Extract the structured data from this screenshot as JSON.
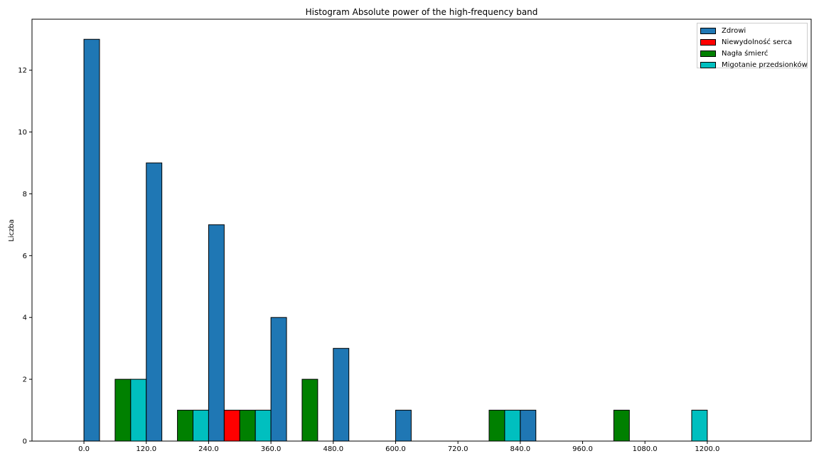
{
  "chart_data": {
    "type": "bar",
    "title": "Histogram Absolute power of the high-frequency band",
    "xlabel": "",
    "ylabel": "Liczba",
    "xlim": [
      -100,
      1400
    ],
    "ylim": [
      0,
      13.65
    ],
    "x_ticks": [
      0,
      120,
      240,
      360,
      480,
      600,
      720,
      840,
      960,
      1080,
      1200
    ],
    "x_tick_labels": [
      "0.0",
      "120.0",
      "240.0",
      "360.0",
      "480.0",
      "600.0",
      "720.0",
      "840.0",
      "960.0",
      "1080.0",
      "1200.0"
    ],
    "y_ticks": [
      0,
      2,
      4,
      6,
      8,
      10,
      12
    ],
    "y_tick_labels": [
      "0",
      "2",
      "4",
      "6",
      "8",
      "10",
      "12"
    ],
    "bin_width": 30,
    "bin_starts": [
      0,
      120,
      240,
      360,
      480,
      600,
      720,
      840,
      960,
      1080,
      1200
    ],
    "bar_order": [
      "Nagła śmierć",
      "Migotanie przedsionków",
      "Zdrowi",
      "Niewydolność serca"
    ],
    "legend_position": "top-right",
    "grid": false,
    "series": [
      {
        "name": "Zdrowi",
        "color": "#1f77b4",
        "values": [
          13,
          9,
          7,
          4,
          3,
          1,
          0,
          1,
          0,
          0,
          0
        ]
      },
      {
        "name": "Niewydolność serca",
        "color": "#ff0000",
        "values": [
          0,
          0,
          1,
          0,
          0,
          0,
          0,
          0,
          0,
          0,
          0
        ]
      },
      {
        "name": "Nagła śmierć",
        "color": "#008000",
        "values": [
          0,
          2,
          1,
          1,
          2,
          0,
          0,
          1,
          0,
          1,
          0
        ]
      },
      {
        "name": "Migotanie przedsionków",
        "color": "#00bfbf",
        "values": [
          0,
          2,
          1,
          1,
          0,
          0,
          0,
          1,
          0,
          0,
          1
        ]
      }
    ]
  }
}
